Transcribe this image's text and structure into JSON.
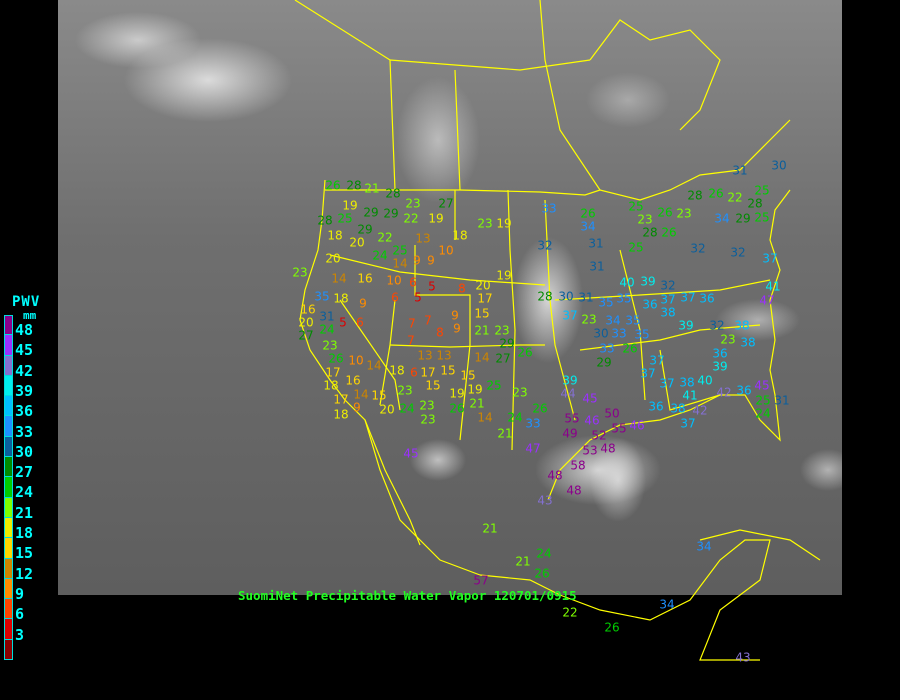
{
  "legend": {
    "title": "PWV",
    "unit": "mm",
    "labels": [
      "48",
      "45",
      "42",
      "39",
      "36",
      "33",
      "30",
      "27",
      "24",
      "21",
      "18",
      "15",
      "12",
      "9",
      "6",
      "3"
    ],
    "colors": [
      "#8b008b",
      "#9b30ff",
      "#8470d0",
      "#00eeee",
      "#00bfff",
      "#1e90ff",
      "#0b5f9c",
      "#008b00",
      "#00cd00",
      "#7fff00",
      "#eeee00",
      "#ffd700",
      "#cd8500",
      "#ff8c00",
      "#ff4500",
      "#dd0000",
      "#8b0000"
    ]
  },
  "title": "SuomiNet Precipitable Water Vapor 120701/0915",
  "map_colors": {
    "borders": "#ffff00",
    "background": "#000000"
  },
  "stations": [
    26,
    28,
    21,
    28,
    28,
    25,
    19,
    29,
    29,
    22,
    19,
    23,
    27,
    23,
    19,
    18,
    20,
    29,
    22,
    24,
    25,
    14,
    9,
    9,
    13,
    10,
    18,
    23,
    20,
    14,
    16,
    10,
    6,
    5,
    6,
    5,
    8,
    20,
    19,
    17,
    35,
    18,
    9,
    6,
    5,
    16,
    20,
    31,
    24,
    27,
    7,
    7,
    7,
    8,
    9,
    9,
    15,
    21,
    23,
    29,
    23,
    26,
    17,
    10,
    14,
    13,
    13,
    14,
    27,
    26,
    18,
    16,
    14,
    18,
    6,
    17,
    15,
    15,
    19,
    15,
    19,
    23,
    21,
    25,
    23,
    17,
    9,
    15,
    20,
    18,
    24,
    23,
    23,
    26,
    14,
    24,
    26,
    33,
    21,
    33,
    32,
    26,
    34,
    31,
    31,
    28,
    30,
    31,
    35,
    35,
    37,
    23,
    34,
    30,
    33,
    33,
    29,
    35,
    35,
    26,
    25,
    25,
    23,
    28,
    26,
    26,
    23,
    28,
    26,
    32,
    32,
    39,
    37,
    38,
    36,
    40,
    37,
    36,
    39,
    32,
    23,
    36,
    39,
    38,
    38,
    37,
    37,
    37,
    38,
    41,
    40,
    36,
    38,
    37,
    42,
    42,
    36,
    45,
    25,
    24,
    31,
    32,
    37,
    41,
    47,
    25,
    28,
    25,
    30,
    31,
    22,
    29,
    34,
    39,
    44,
    45,
    46,
    55,
    50,
    55,
    52,
    49,
    48,
    53,
    46,
    47,
    48,
    48,
    43,
    58,
    45,
    21,
    21,
    24,
    26,
    57,
    22,
    34,
    26,
    34,
    43
  ]
}
